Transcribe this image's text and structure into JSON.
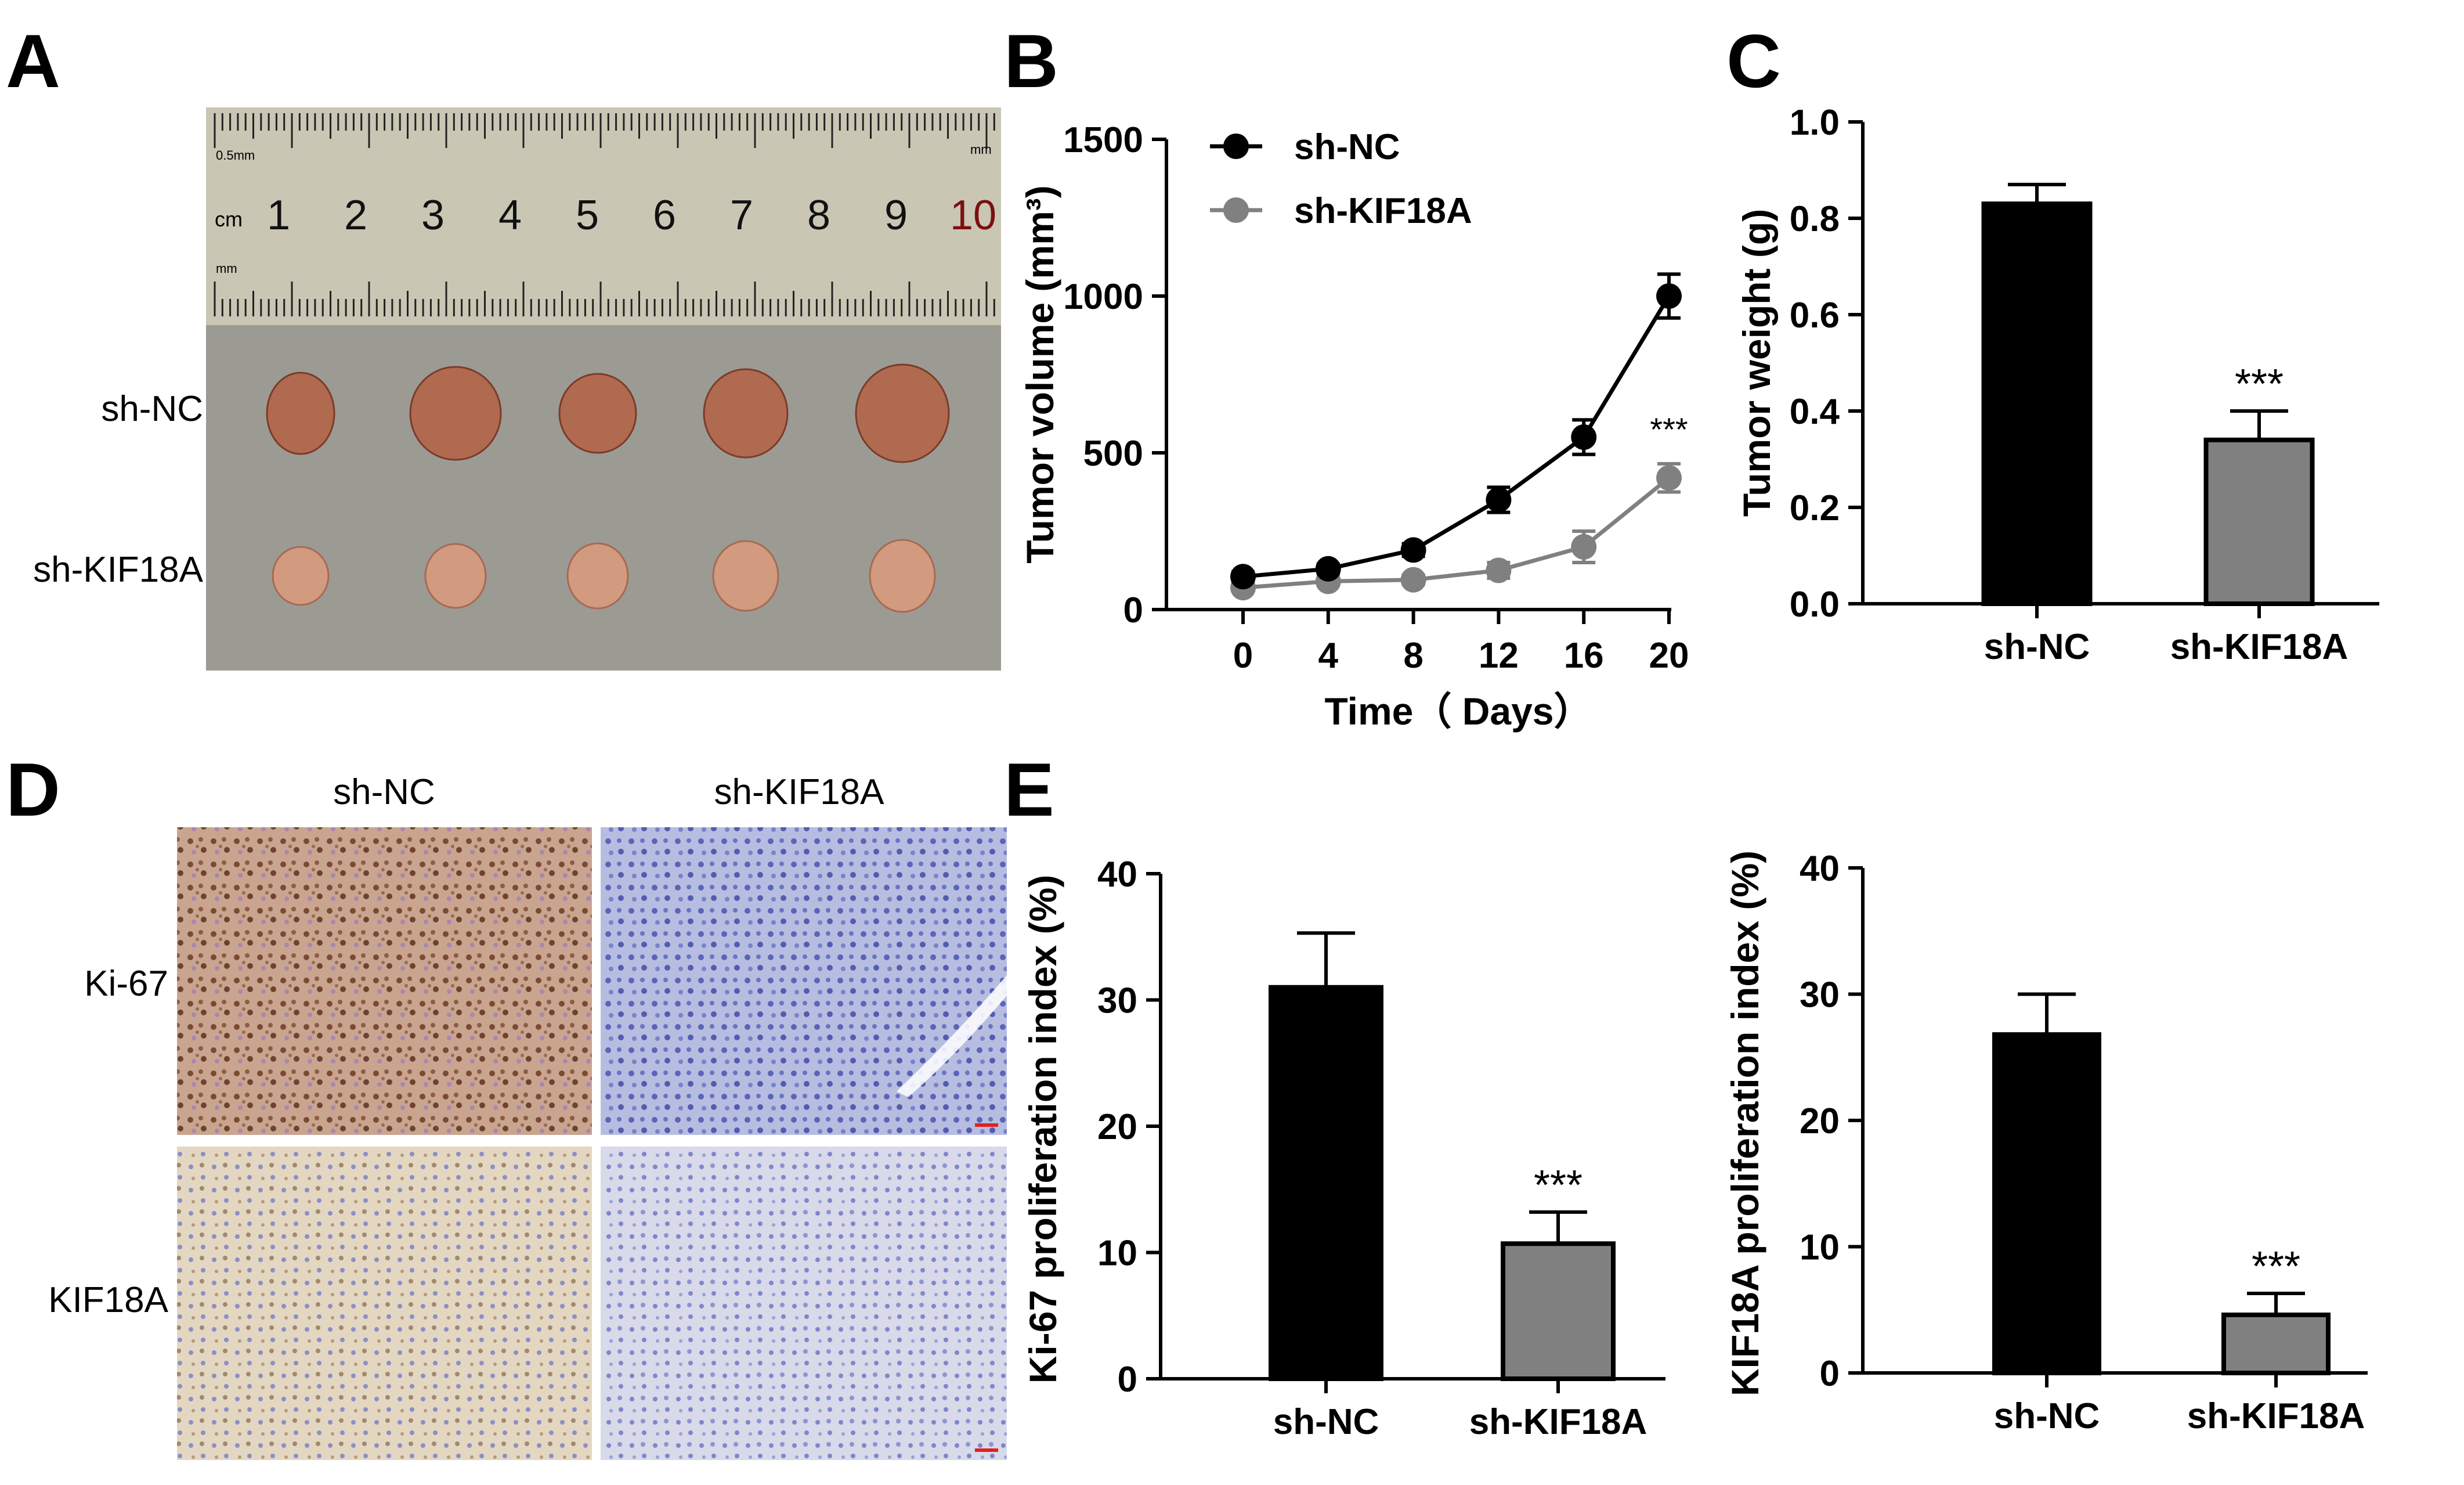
{
  "panels": {
    "a": {
      "letter": "A",
      "row_labels": [
        "sh-NC",
        "sh-KIF18A"
      ],
      "ruler": {
        "unit": "cm",
        "top_note": "0.5mm",
        "right_note": "mm",
        "bottom_note": "mm",
        "numbers": [
          "1",
          "2",
          "3",
          "4",
          "5",
          "6",
          "7",
          "8",
          "9",
          "10"
        ]
      }
    },
    "b": {
      "letter": "B"
    },
    "c": {
      "letter": "C"
    },
    "d": {
      "letter": "D",
      "col_labels": [
        "sh-NC",
        "sh-KIF18A"
      ],
      "row_labels": [
        "Ki-67",
        "KIF18A"
      ]
    },
    "e": {
      "letter": "E"
    }
  },
  "colors": {
    "sh_nc": "#000000",
    "sh_kif18a": "#808080",
    "ki67_sh_nc_tissue": "#c9a58f",
    "ki67_sh_kif18a_tissue": "#b3b8dc",
    "kif18a_sh_nc_tissue": "#e2d6c0",
    "kif18a_sh_kif18a_tissue": "#d4d5e6",
    "tumor": "#b06a4f",
    "ruler": "#c9c6b4",
    "bench": "#9b9b94"
  },
  "chart_data": [
    {
      "id": "B",
      "type": "line",
      "x": [
        0,
        4,
        8,
        12,
        16,
        20
      ],
      "xlabel": "Time（ Days）",
      "ylabel": "Tumor volume (mm³)",
      "ylim": [
        0,
        1500
      ],
      "yticks": [
        0,
        500,
        1000,
        1500
      ],
      "legend_position": "top-left",
      "series": [
        {
          "name": "sh-NC",
          "values": [
            105,
            130,
            190,
            350,
            550,
            1000
          ],
          "errors": [
            15,
            15,
            20,
            40,
            55,
            70
          ]
        },
        {
          "name": "sh-KIF18A",
          "values": [
            70,
            90,
            95,
            125,
            200,
            420
          ],
          "errors": [
            12,
            12,
            15,
            25,
            50,
            45
          ]
        }
      ],
      "annotations": [
        {
          "x": 20,
          "series": "sh-KIF18A",
          "text": "***"
        }
      ]
    },
    {
      "id": "C",
      "type": "bar",
      "categories": [
        "sh-NC",
        "sh-KIF18A"
      ],
      "values": [
        0.83,
        0.34
      ],
      "errors": [
        0.04,
        0.06
      ],
      "ylabel": "Tumor weight (g)",
      "ylim": [
        0,
        1.0
      ],
      "yticks": [
        "0.0",
        "0.2",
        "0.4",
        "0.6",
        "0.8",
        "1.0"
      ],
      "annotations": [
        {
          "category": "sh-KIF18A",
          "text": "***"
        }
      ]
    },
    {
      "id": "E1",
      "type": "bar",
      "categories": [
        "sh-NC",
        "sh-KIF18A"
      ],
      "values": [
        31,
        10.7
      ],
      "errors": [
        4.3,
        2.5
      ],
      "ylabel": "Ki-67 proliferation index (%)",
      "ylim": [
        0,
        40
      ],
      "yticks": [
        0,
        10,
        20,
        30,
        40
      ],
      "annotations": [
        {
          "category": "sh-KIF18A",
          "text": "***"
        }
      ]
    },
    {
      "id": "E2",
      "type": "bar",
      "categories": [
        "sh-NC",
        "sh-KIF18A"
      ],
      "values": [
        26.8,
        4.6
      ],
      "errors": [
        3.2,
        1.7
      ],
      "ylabel": "KIF18A proliferation index (%)",
      "ylim": [
        0,
        40
      ],
      "yticks": [
        0,
        10,
        20,
        30,
        40
      ],
      "annotations": [
        {
          "category": "sh-KIF18A",
          "text": "***"
        }
      ]
    }
  ]
}
